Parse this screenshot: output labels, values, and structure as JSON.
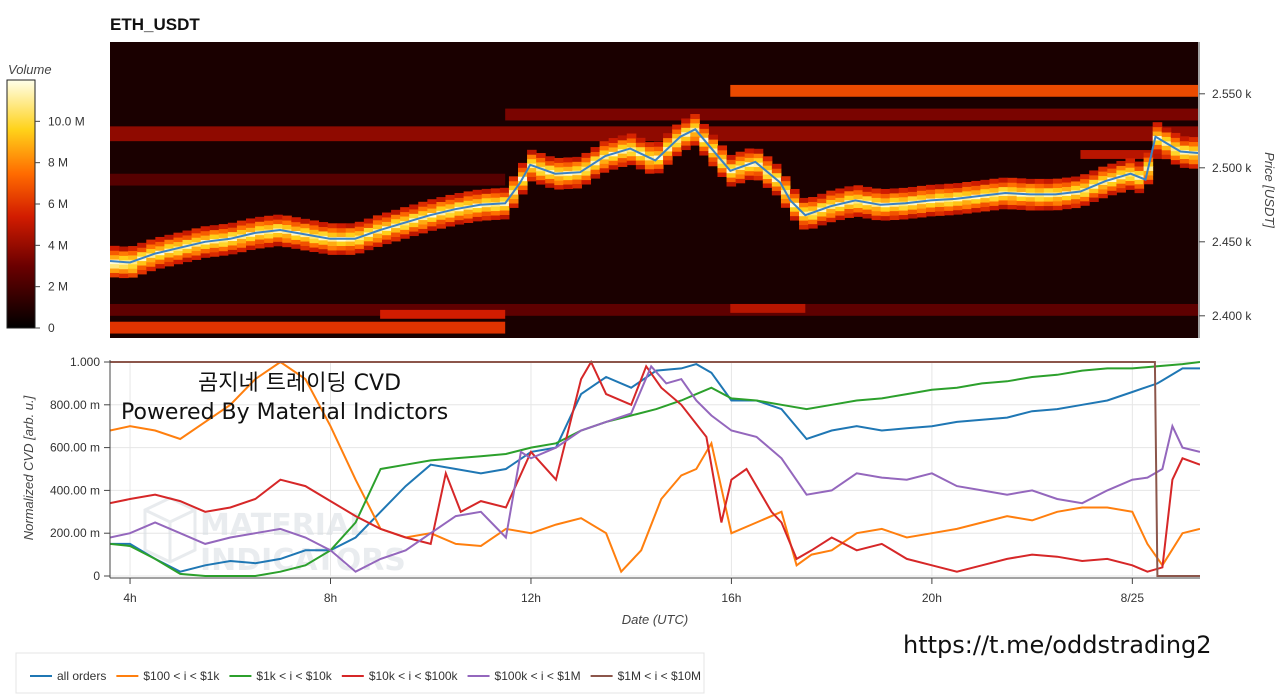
{
  "chart_data": [
    {
      "type": "heatmap",
      "title": "ETH_USDT",
      "ylabel": "Price [USDT]",
      "ylim": [
        2385,
        2585
      ],
      "yticks": [
        "2.400 k",
        "2.450 k",
        "2.500 k",
        "2.550 k"
      ],
      "ytick_values": [
        2400,
        2450,
        2500,
        2550
      ],
      "colorbar": {
        "label": "Volume",
        "range": [
          0,
          12
        ],
        "ticks": [
          "0",
          "2 M",
          "4 M",
          "6 M",
          "8 M",
          "10.0 M"
        ],
        "tick_values": [
          0,
          2,
          4,
          6,
          8,
          10
        ]
      },
      "xlim": [
        3.6,
        25.35
      ],
      "price_line": {
        "x": [
          3.6,
          4.0,
          4.5,
          5.0,
          5.5,
          6.0,
          6.5,
          7.0,
          7.5,
          8.0,
          8.5,
          9.0,
          9.5,
          10.0,
          10.5,
          11.0,
          11.5,
          11.8,
          12.0,
          12.5,
          13.0,
          13.5,
          14.0,
          14.5,
          15.0,
          15.3,
          15.5,
          16.0,
          16.5,
          17.0,
          17.2,
          17.5,
          18.0,
          18.5,
          19.0,
          19.5,
          20.0,
          20.5,
          21.0,
          21.5,
          22.0,
          22.5,
          23.0,
          23.5,
          24.0,
          24.3,
          24.5,
          25.0,
          25.35
        ],
        "y": [
          2437,
          2436,
          2442,
          2446,
          2450,
          2452,
          2456,
          2458,
          2455,
          2452,
          2452,
          2458,
          2463,
          2468,
          2472,
          2475,
          2476,
          2490,
          2502,
          2496,
          2497,
          2508,
          2513,
          2505,
          2521,
          2526,
          2518,
          2498,
          2504,
          2490,
          2478,
          2468,
          2474,
          2478,
          2475,
          2476,
          2478,
          2479,
          2481,
          2483,
          2482,
          2482,
          2484,
          2491,
          2496,
          2492,
          2521,
          2511,
          2510
        ]
      },
      "bands": [
        {
          "y0": 2548,
          "y1": 2556,
          "x0": 16.0,
          "x1": 25.35,
          "intensity": 0.55
        },
        {
          "y0": 2532,
          "y1": 2540,
          "x0": 11.5,
          "x1": 25.35,
          "intensity": 0.28
        },
        {
          "y0": 2518,
          "y1": 2528,
          "x0": 3.6,
          "x1": 25.35,
          "intensity": 0.32
        },
        {
          "y0": 2400,
          "y1": 2408,
          "x0": 3.6,
          "x1": 25.35,
          "intensity": 0.22
        },
        {
          "y0": 2388,
          "y1": 2396,
          "x0": 3.6,
          "x1": 11.5,
          "intensity": 0.5
        },
        {
          "y0": 2398,
          "y1": 2404,
          "x0": 9.0,
          "x1": 11.5,
          "intensity": 0.45
        },
        {
          "y0": 2402,
          "y1": 2408,
          "x0": 16.0,
          "x1": 17.5,
          "intensity": 0.4
        },
        {
          "y0": 2488,
          "y1": 2496,
          "x0": 3.6,
          "x1": 11.5,
          "intensity": 0.2
        },
        {
          "y0": 2506,
          "y1": 2512,
          "x0": 23.0,
          "x1": 25.35,
          "intensity": 0.4
        }
      ]
    },
    {
      "type": "line",
      "xlabel": "Date (UTC)",
      "ylabel": "Normalized CVD [arb. u.]",
      "ylim": [
        0,
        1
      ],
      "xlim": [
        3.6,
        25.35
      ],
      "xticks": [
        "4h",
        "8h",
        "12h",
        "16h",
        "20h",
        "8/25"
      ],
      "xtick_values": [
        4,
        8,
        12,
        16,
        20,
        24
      ],
      "yticks": [
        "0",
        "200.00 m",
        "400.00 m",
        "600.00 m",
        "800.00 m",
        "1.000"
      ],
      "ytick_values": [
        0,
        0.2,
        0.4,
        0.6,
        0.8,
        1.0
      ],
      "grid": true,
      "series": [
        {
          "name": "all orders",
          "color": "#1f77b4",
          "x": [
            3.6,
            4.0,
            4.5,
            5.0,
            5.5,
            6.0,
            6.5,
            7.0,
            7.5,
            8.0,
            8.5,
            9.0,
            9.5,
            10.0,
            10.5,
            11.0,
            11.5,
            12.0,
            12.5,
            13.0,
            13.5,
            14.0,
            14.5,
            15.0,
            15.3,
            15.6,
            16.0,
            16.5,
            17.0,
            17.5,
            18.0,
            18.5,
            19.0,
            19.5,
            20.0,
            20.5,
            21.0,
            21.5,
            22.0,
            22.5,
            23.0,
            23.5,
            24.0,
            24.5,
            25.0,
            25.35
          ],
          "y": [
            0.15,
            0.15,
            0.08,
            0.02,
            0.05,
            0.07,
            0.06,
            0.08,
            0.12,
            0.12,
            0.18,
            0.3,
            0.42,
            0.52,
            0.5,
            0.48,
            0.5,
            0.58,
            0.6,
            0.85,
            0.93,
            0.88,
            0.96,
            0.97,
            0.99,
            0.95,
            0.82,
            0.82,
            0.78,
            0.64,
            0.68,
            0.7,
            0.68,
            0.69,
            0.7,
            0.72,
            0.73,
            0.74,
            0.77,
            0.78,
            0.8,
            0.82,
            0.86,
            0.9,
            0.97,
            0.97
          ]
        },
        {
          "name": "$100 < i < $1k",
          "color": "#ff7f0e",
          "x": [
            3.6,
            4.0,
            4.5,
            5.0,
            5.5,
            6.0,
            6.5,
            7.0,
            7.5,
            8.0,
            8.5,
            9.0,
            9.5,
            10.0,
            10.5,
            11.0,
            11.5,
            12.0,
            12.5,
            13.0,
            13.5,
            13.8,
            14.2,
            14.6,
            15.0,
            15.3,
            15.6,
            16.0,
            16.5,
            17.0,
            17.3,
            17.6,
            18.0,
            18.5,
            19.0,
            19.5,
            20.0,
            20.5,
            21.0,
            21.5,
            22.0,
            22.5,
            23.0,
            23.5,
            24.0,
            24.3,
            24.6,
            25.0,
            25.35
          ],
          "y": [
            0.68,
            0.7,
            0.68,
            0.64,
            0.72,
            0.8,
            0.92,
            1.0,
            0.92,
            0.7,
            0.45,
            0.22,
            0.18,
            0.2,
            0.15,
            0.14,
            0.22,
            0.2,
            0.24,
            0.27,
            0.2,
            0.02,
            0.12,
            0.36,
            0.47,
            0.5,
            0.62,
            0.2,
            0.25,
            0.3,
            0.05,
            0.1,
            0.12,
            0.2,
            0.22,
            0.18,
            0.2,
            0.22,
            0.25,
            0.28,
            0.26,
            0.3,
            0.32,
            0.32,
            0.3,
            0.15,
            0.05,
            0.2,
            0.22
          ]
        },
        {
          "name": "$1k < i < $10k",
          "color": "#2ca02c",
          "x": [
            3.6,
            4.0,
            4.5,
            5.0,
            5.5,
            6.0,
            6.5,
            7.0,
            7.5,
            8.0,
            8.5,
            9.0,
            9.5,
            10.0,
            10.5,
            11.0,
            11.5,
            12.0,
            12.5,
            13.0,
            13.5,
            14.0,
            14.5,
            15.0,
            15.3,
            15.6,
            16.0,
            16.5,
            17.0,
            17.5,
            18.0,
            18.5,
            19.0,
            19.5,
            20.0,
            20.5,
            21.0,
            21.5,
            22.0,
            22.5,
            23.0,
            23.5,
            24.0,
            24.5,
            25.0,
            25.35
          ],
          "y": [
            0.15,
            0.14,
            0.08,
            0.01,
            0.0,
            0.0,
            0.0,
            0.02,
            0.05,
            0.12,
            0.25,
            0.5,
            0.52,
            0.54,
            0.55,
            0.56,
            0.57,
            0.6,
            0.62,
            0.68,
            0.72,
            0.75,
            0.78,
            0.82,
            0.85,
            0.88,
            0.83,
            0.82,
            0.8,
            0.78,
            0.8,
            0.82,
            0.83,
            0.85,
            0.87,
            0.88,
            0.9,
            0.91,
            0.93,
            0.94,
            0.96,
            0.97,
            0.97,
            0.98,
            0.99,
            1.0
          ]
        },
        {
          "name": "$10k < i < $100k",
          "color": "#d62728",
          "x": [
            3.6,
            4.0,
            4.5,
            5.0,
            5.5,
            6.0,
            6.5,
            7.0,
            7.5,
            8.0,
            8.5,
            9.0,
            9.5,
            10.0,
            10.3,
            10.6,
            11.0,
            11.5,
            12.0,
            12.5,
            13.0,
            13.2,
            13.5,
            14.0,
            14.3,
            14.6,
            15.0,
            15.5,
            15.8,
            16.0,
            16.3,
            16.8,
            17.0,
            17.3,
            17.6,
            18.0,
            18.5,
            19.0,
            19.5,
            20.0,
            20.5,
            21.0,
            21.5,
            22.0,
            22.5,
            23.0,
            23.5,
            24.0,
            24.3,
            24.6,
            24.8,
            25.0,
            25.35
          ],
          "y": [
            0.34,
            0.36,
            0.38,
            0.35,
            0.3,
            0.32,
            0.36,
            0.45,
            0.42,
            0.35,
            0.28,
            0.22,
            0.18,
            0.15,
            0.48,
            0.3,
            0.35,
            0.32,
            0.58,
            0.45,
            0.92,
            1.0,
            0.85,
            0.8,
            0.98,
            0.88,
            0.8,
            0.65,
            0.25,
            0.45,
            0.5,
            0.3,
            0.25,
            0.08,
            0.12,
            0.18,
            0.12,
            0.15,
            0.08,
            0.05,
            0.02,
            0.05,
            0.08,
            0.1,
            0.09,
            0.07,
            0.08,
            0.05,
            0.02,
            0.04,
            0.45,
            0.55,
            0.52
          ]
        },
        {
          "name": "$100k < i < $1M",
          "color": "#9467bd",
          "x": [
            3.6,
            4.0,
            4.5,
            5.0,
            5.5,
            6.0,
            6.5,
            7.0,
            7.5,
            8.0,
            8.5,
            9.0,
            9.5,
            10.0,
            10.5,
            11.0,
            11.5,
            11.8,
            12.0,
            12.5,
            13.0,
            13.5,
            14.0,
            14.4,
            14.7,
            15.0,
            15.3,
            15.6,
            16.0,
            16.5,
            17.0,
            17.5,
            18.0,
            18.5,
            19.0,
            19.5,
            20.0,
            20.5,
            21.0,
            21.5,
            22.0,
            22.5,
            23.0,
            23.5,
            24.0,
            24.3,
            24.6,
            24.8,
            25.0,
            25.35
          ],
          "y": [
            0.18,
            0.2,
            0.25,
            0.2,
            0.15,
            0.18,
            0.2,
            0.22,
            0.18,
            0.12,
            0.02,
            0.08,
            0.12,
            0.2,
            0.28,
            0.3,
            0.18,
            0.58,
            0.55,
            0.6,
            0.68,
            0.72,
            0.76,
            0.98,
            0.9,
            0.92,
            0.82,
            0.75,
            0.68,
            0.65,
            0.55,
            0.38,
            0.4,
            0.48,
            0.46,
            0.45,
            0.48,
            0.42,
            0.4,
            0.38,
            0.4,
            0.36,
            0.34,
            0.4,
            0.45,
            0.46,
            0.5,
            0.7,
            0.6,
            0.58
          ]
        },
        {
          "name": "$1M < i < $10M",
          "color": "#8c564b",
          "x": [
            3.6,
            24.2,
            24.45,
            24.5,
            25.35
          ],
          "y": [
            1.0,
            1.0,
            1.0,
            0.0,
            0.0
          ]
        }
      ]
    }
  ],
  "overlay_text": {
    "line1": "곰지네 트레이딩 CVD",
    "line2": "Powered By Material Indictors"
  },
  "watermark": {
    "line1": "MATERIAL",
    "line2": "INDICATORS"
  },
  "url": "https://t.me/oddstrading2"
}
